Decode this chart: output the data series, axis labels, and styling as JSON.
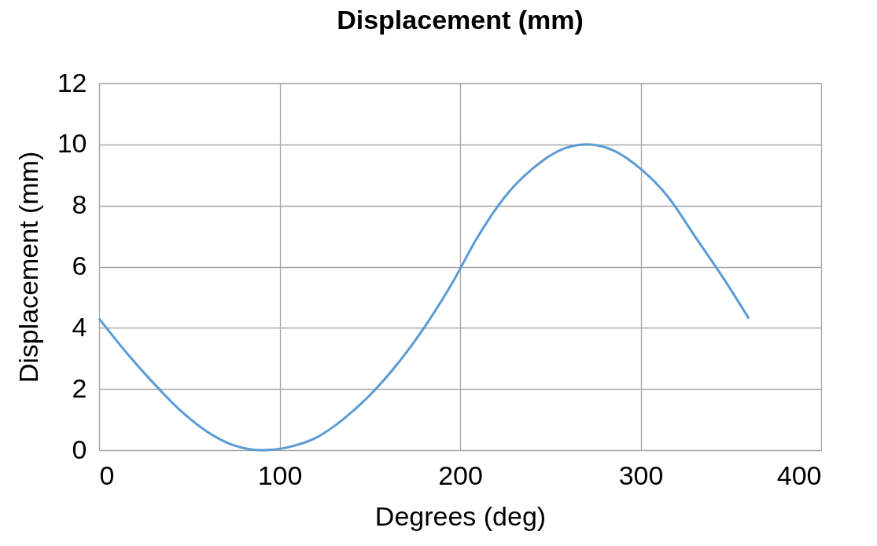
{
  "chart_data": {
    "type": "line",
    "title": "Displacement (mm)",
    "xlabel": "Degrees (deg)",
    "ylabel": "Displacement (mm)",
    "x": [
      0,
      15,
      30,
      45,
      60,
      75,
      90,
      105,
      120,
      135,
      150,
      165,
      180,
      195,
      210,
      225,
      240,
      255,
      270,
      285,
      300,
      315,
      330,
      345,
      360
    ],
    "series": [
      {
        "color": "#5b9bd5",
        "values": [
          4.3,
          3.2,
          2.2,
          1.3,
          0.6,
          0.15,
          0,
          0.1,
          0.4,
          1.0,
          1.8,
          2.8,
          4.0,
          5.4,
          7.0,
          8.3,
          9.2,
          9.8,
          10,
          9.8,
          9.2,
          8.3,
          7.0,
          5.7,
          4.3
        ]
      }
    ],
    "xlim": [
      0,
      400
    ],
    "xticks": [
      0,
      100,
      200,
      300,
      400
    ],
    "ylim": [
      0,
      12
    ],
    "yticks": [
      0,
      2,
      4,
      6,
      8,
      10,
      12
    ],
    "grid": true,
    "marker": "none",
    "line_style": "solid"
  }
}
